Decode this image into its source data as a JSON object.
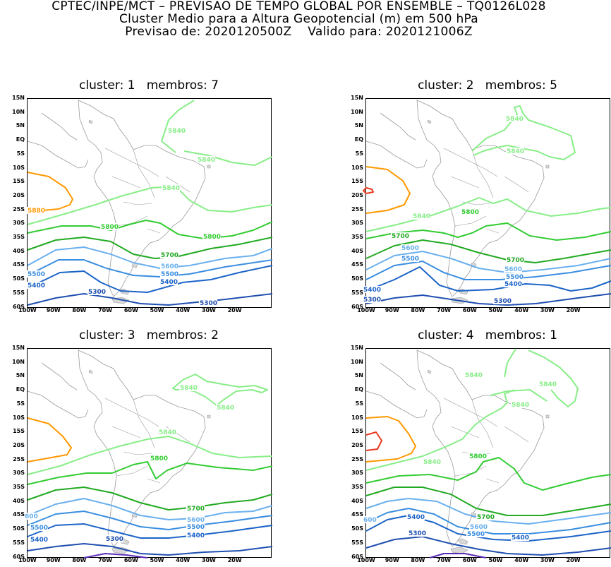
{
  "header": {
    "line1": "CPTEC/INPE/MCT – PREVISAO DE TEMPO GLOBAL POR ENSEMBLE – TQ0126L028",
    "line2": "Cluster Medio para a Altura Geopotencial (m) em 500 hPa",
    "line3": "Previsao de: 2020120500Z    Valido para: 2020121006Z"
  },
  "lat_labels": [
    "15N",
    "10N",
    "5N",
    "EQ",
    "5S",
    "10S",
    "15S",
    "20S",
    "25S",
    "30S",
    "35S",
    "40S",
    "45S",
    "50S",
    "55S",
    "60S"
  ],
  "lon_labels": [
    "100W",
    "90W",
    "80W",
    "70W",
    "60W",
    "50W",
    "40W",
    "30W",
    "20W"
  ],
  "colors": {
    "c5880": "#ff9900",
    "c5920": "#e8391e",
    "c5840": "#88ee88",
    "c5800": "#33cc33",
    "c5700": "#22aa22",
    "c5600": "#6ab0ee",
    "c5500": "#3a8ee0",
    "c5400": "#1c64c8",
    "c5300": "#1f4fb0",
    "c5200": "#5a2fb8",
    "coast": "#9a9a9a"
  },
  "panels": [
    {
      "title": "cluster: 1   membros: 7",
      "labels": [
        {
          "text": "5880",
          "color": "c5880"
        },
        {
          "text": "5840",
          "color": "c5840"
        },
        {
          "text": "5840",
          "color": "c5840"
        },
        {
          "text": "5840",
          "color": "c5840"
        },
        {
          "text": "5800",
          "color": "c5800"
        },
        {
          "text": "5800",
          "color": "c5800"
        },
        {
          "text": "5700",
          "color": "c5700"
        },
        {
          "text": "5600",
          "color": "c5600"
        },
        {
          "text": "5500",
          "color": "c5500"
        },
        {
          "text": "5500",
          "color": "c5500"
        },
        {
          "text": "5400",
          "color": "c5400"
        },
        {
          "text": "5400",
          "color": "c5400"
        },
        {
          "text": "5300",
          "color": "c5300"
        },
        {
          "text": "5300",
          "color": "c5300"
        }
      ]
    },
    {
      "title": "cluster: 2   membros: 5",
      "labels": [
        {
          "text": "5840",
          "color": "c5840"
        },
        {
          "text": "5840",
          "color": "c5840"
        },
        {
          "text": "5840",
          "color": "c5840"
        },
        {
          "text": "5800",
          "color": "c5800"
        },
        {
          "text": "5700",
          "color": "c5700"
        },
        {
          "text": "5700",
          "color": "c5700"
        },
        {
          "text": "5600",
          "color": "c5600"
        },
        {
          "text": "5600",
          "color": "c5600"
        },
        {
          "text": "5500",
          "color": "c5500"
        },
        {
          "text": "5500",
          "color": "c5500"
        },
        {
          "text": "5400",
          "color": "c5400"
        },
        {
          "text": "5400",
          "color": "c5400"
        },
        {
          "text": "5300",
          "color": "c5300"
        },
        {
          "text": "5300",
          "color": "c5300"
        }
      ]
    },
    {
      "title": "cluster: 3   membros: 2",
      "labels": [
        {
          "text": "5840",
          "color": "c5840"
        },
        {
          "text": "5840",
          "color": "c5840"
        },
        {
          "text": "5840",
          "color": "c5840"
        },
        {
          "text": "5800",
          "color": "c5800"
        },
        {
          "text": "5700",
          "color": "c5700"
        },
        {
          "text": "5600",
          "color": "c5600"
        },
        {
          "text": "600",
          "color": "c5600"
        },
        {
          "text": "5500",
          "color": "c5500"
        },
        {
          "text": "5500",
          "color": "c5500"
        },
        {
          "text": "5400",
          "color": "c5400"
        },
        {
          "text": "5400",
          "color": "c5400"
        },
        {
          "text": "5300",
          "color": "c5300"
        }
      ]
    },
    {
      "title": "cluster: 4   membros: 1",
      "labels": [
        {
          "text": "5840",
          "color": "c5840"
        },
        {
          "text": "5840",
          "color": "c5840"
        },
        {
          "text": "5840",
          "color": "c5840"
        },
        {
          "text": "5840",
          "color": "c5840"
        },
        {
          "text": "5800",
          "color": "c5800"
        },
        {
          "text": "5700",
          "color": "c5700"
        },
        {
          "text": "5600",
          "color": "c5600"
        },
        {
          "text": "600",
          "color": "c5600"
        },
        {
          "text": "5500",
          "color": "c5500"
        },
        {
          "text": "5400",
          "color": "c5400"
        },
        {
          "text": "5400",
          "color": "c5400"
        },
        {
          "text": "5300",
          "color": "c5300"
        }
      ]
    }
  ]
}
